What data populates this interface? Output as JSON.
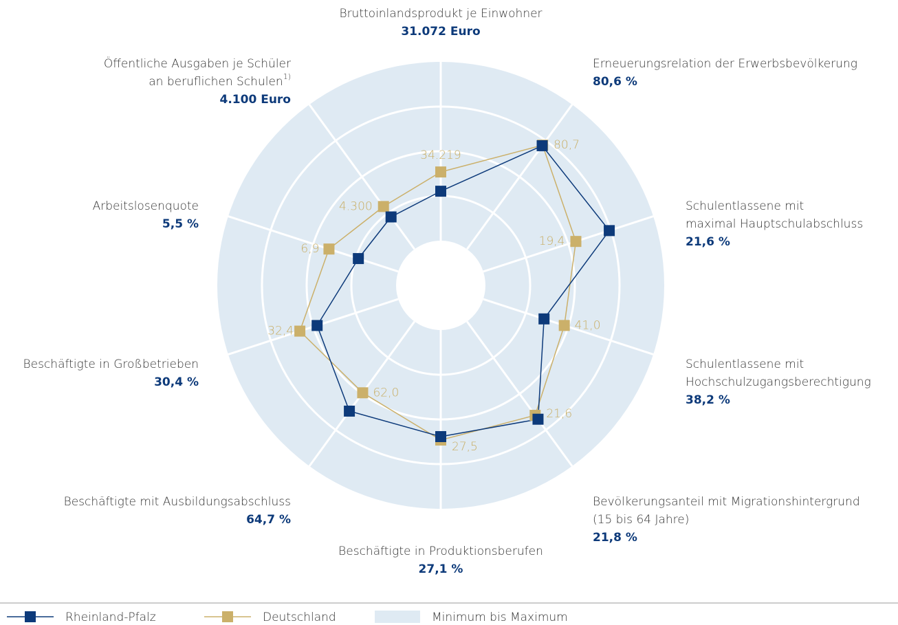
{
  "chart_data": {
    "type": "radar",
    "axes": [
      {
        "label": [
          "Bruttoinlandsprodukt je Einwohner"
        ],
        "lim": [
          23000,
          52200
        ]
      },
      {
        "label": [
          "Erneuerungsrelation der Erwerbsbevölkerung"
        ],
        "lim": [
          62,
          88
        ]
      },
      {
        "label": [
          "Schulentlassene mit",
          "maximal Hauptschulabschluss"
        ],
        "lim": [
          13.3,
          24.5
        ]
      },
      {
        "label": [
          "Schulentlassene mit",
          "Hochschulzugangsberechtigung"
        ],
        "lim": [
          29.8,
          53.3
        ]
      },
      {
        "label": [
          "Bevölkerungsanteil mit Migrationshintergrund",
          "(15 bis 64 Jahre)"
        ],
        "lim": [
          16.8,
          24.2
        ]
      },
      {
        "label": [
          "Beschäftigte in Produktionsberufen"
        ],
        "lim": [
          14.7,
          35.5
        ]
      },
      {
        "label": [
          "Beschäftigte mit Ausbildungsabschluss"
        ],
        "lim": [
          51.5,
          72.8
        ]
      },
      {
        "label": [
          "Beschäftigte in Großbetrieben"
        ],
        "lim": [
          21.0,
          40.7
        ]
      },
      {
        "label": [
          "Arbeitslosenquote"
        ],
        "lim": [
          3.6,
          11.7
        ]
      },
      {
        "label": [
          "Öffentliche Ausgaben je Schüler",
          "an beruflichen Schulen"
        ],
        "footnote": "1)",
        "lim": [
          3480,
          6260
        ]
      }
    ],
    "series": [
      {
        "name": "Rheinland-Pfalz",
        "color": "#0d3a7a",
        "values": [
          31072,
          80.6,
          21.6,
          38.2,
          21.8,
          27.1,
          64.7,
          30.4,
          5.5,
          4100
        ],
        "value_labels": [
          "31.072 Euro",
          "80,6 %",
          "21,6 %",
          "38,2 %",
          "21,8 %",
          "27,1 %",
          "64,7 %",
          "30,4 %",
          "5,5 %",
          "4.100 Euro"
        ]
      },
      {
        "name": "Deutschland",
        "color": "#cbb06a",
        "values": [
          34219,
          80.7,
          19.4,
          41.0,
          21.6,
          27.5,
          62.0,
          32.4,
          6.9,
          4300
        ],
        "value_labels": [
          "34.219",
          "80,7",
          "19,4",
          "41,0",
          "21,6",
          "27,5",
          "62,0",
          "32,4",
          "6,9",
          "4.300"
        ]
      }
    ],
    "range_legend": "Minimum bis Maximum",
    "range_color": "#dfeaf3"
  }
}
